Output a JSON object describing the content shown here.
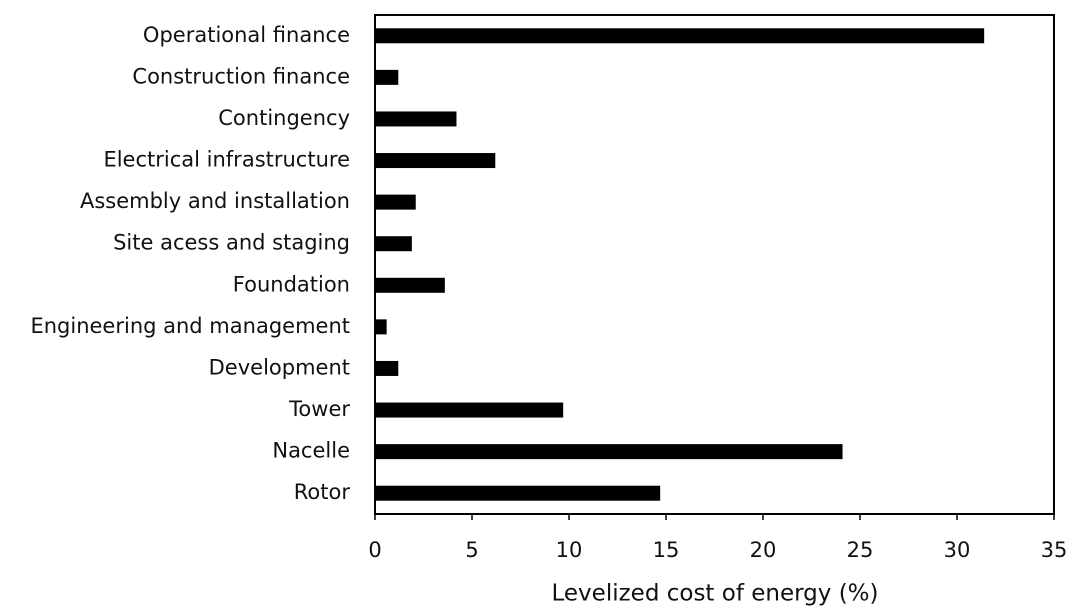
{
  "chart_data": {
    "type": "barh",
    "xlabel": "Levelized cost of energy (%)",
    "categories": [
      "Operational finance",
      "Construction finance",
      "Contingency",
      "Electrical infrastructure",
      "Assembly and installation",
      "Site acess and staging",
      "Foundation",
      "Engineering and management",
      "Development",
      "Tower",
      "Nacelle",
      "Rotor"
    ],
    "values": [
      31.4,
      1.2,
      4.2,
      6.2,
      2.1,
      1.9,
      3.6,
      0.6,
      1.2,
      9.7,
      24.1,
      14.7
    ],
    "color": "#000000",
    "xlim": [
      0,
      35
    ],
    "xticks": [
      0,
      5,
      10,
      15,
      20,
      25,
      30,
      35
    ]
  }
}
